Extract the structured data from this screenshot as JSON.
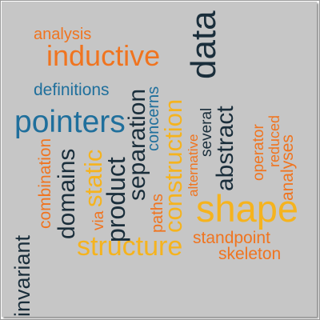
{
  "colors": {
    "background": "#c6c6c6",
    "orange": "#f0741f",
    "gold": "#f5b31e",
    "blue": "#1f6f9c",
    "navy": "#1a2e3b"
  },
  "words": [
    "analysis",
    "inductive",
    "data",
    "definitions",
    "pointers",
    "separation",
    "concerns",
    "construction",
    "abstract",
    "several",
    "alternative",
    "operator",
    "reduced",
    "analyses",
    "combination",
    "domains",
    "static",
    "product",
    "via",
    "paths",
    "shape",
    "standpoint",
    "skeleton",
    "structure",
    "invariant"
  ]
}
